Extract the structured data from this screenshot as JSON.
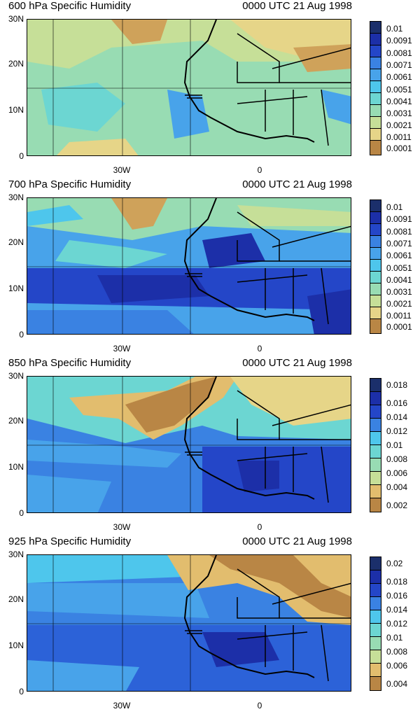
{
  "panels": [
    {
      "title": "600 hPa Specific Humidity",
      "date": "0000 UTC 21 Aug 1998",
      "y_ticks": [
        "30N",
        "20N",
        "10N",
        "0"
      ],
      "x_ticks": [
        "30W",
        "0"
      ],
      "colorbar_labels": [
        "0.01",
        "0.0091",
        "0.0081",
        "0.0071",
        "0.0061",
        "0.0051",
        "0.0041",
        "0.0031",
        "0.0021",
        "0.0011",
        "0.0001"
      ]
    },
    {
      "title": "700 hPa Specific Humidity",
      "date": "0000 UTC 21 Aug 1998",
      "y_ticks": [
        "30N",
        "20N",
        "10N",
        "0"
      ],
      "x_ticks": [
        "30W",
        "0"
      ],
      "colorbar_labels": [
        "0.01",
        "0.0091",
        "0.0081",
        "0.0071",
        "0.0061",
        "0.0051",
        "0.0041",
        "0.0031",
        "0.0021",
        "0.0011",
        "0.0001"
      ]
    },
    {
      "title": "850 hPa Specific Humidity",
      "date": "0000 UTC 21 Aug 1998",
      "y_ticks": [
        "30N",
        "20N",
        "10N",
        "0"
      ],
      "x_ticks": [
        "30W",
        "0"
      ],
      "colorbar_labels": [
        "0.018",
        "0.016",
        "0.014",
        "0.012",
        "0.01",
        "0.008",
        "0.006",
        "0.004",
        "0.002"
      ]
    },
    {
      "title": "925 hPa Specific Humidity",
      "date": "0000 UTC 21 Aug 1998",
      "y_ticks": [
        "30N",
        "20N",
        "10N",
        "0"
      ],
      "x_ticks": [
        "30W",
        "0"
      ],
      "colorbar_labels": [
        "0.02",
        "0.018",
        "0.016",
        "0.014",
        "0.012",
        "0.01",
        "0.008",
        "0.006",
        "0.004"
      ]
    }
  ],
  "palette": [
    "#1b2f6b",
    "#1c2fa8",
    "#2446c8",
    "#2c62d8",
    "#3a82e2",
    "#48a3ea",
    "#4ec6ec",
    "#6cd6d2",
    "#98dcb3",
    "#c6df98",
    "#e6d588",
    "#e2bd6e",
    "#cfa25a",
    "#b98645",
    "#9c6b34"
  ]
}
